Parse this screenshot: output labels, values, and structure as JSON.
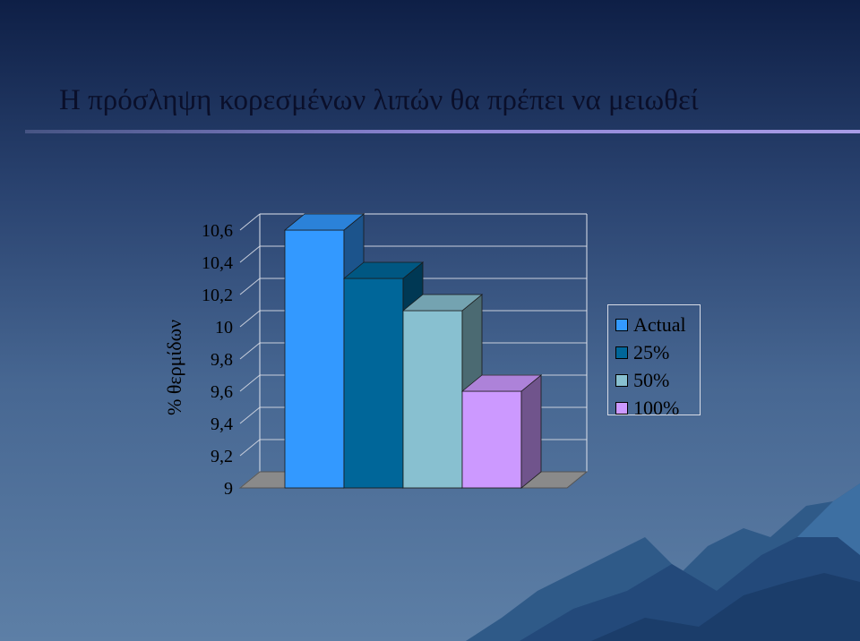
{
  "slide": {
    "title": "Η πρόσληψη κορεσμένων λιπών θα πρέπει να μειωθεί"
  },
  "chart_data": {
    "type": "bar",
    "style": "3d",
    "ylabel": "% θερμίδων",
    "xlabel": "",
    "ylim": [
      9,
      10.6
    ],
    "ytick_labels": [
      "9",
      "9,2",
      "9,4",
      "9,6",
      "9,8",
      "10",
      "10,2",
      "10,4",
      "10,6"
    ],
    "grid": true,
    "legend_position": "right",
    "series": [
      {
        "name": "Actual",
        "value": 10.6,
        "color": "#3399ff"
      },
      {
        "name": "25%",
        "value": 10.3,
        "color": "#006699"
      },
      {
        "name": "50%",
        "value": 10.1,
        "color": "#88c0d0"
      },
      {
        "name": "100%",
        "value": 9.6,
        "color": "#cc99ff"
      }
    ]
  }
}
